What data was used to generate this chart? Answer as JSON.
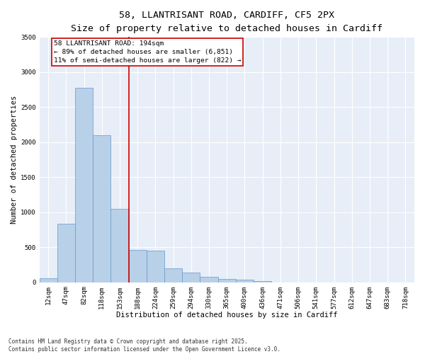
{
  "title_line1": "58, LLANTRISANT ROAD, CARDIFF, CF5 2PX",
  "title_line2": "Size of property relative to detached houses in Cardiff",
  "xlabel": "Distribution of detached houses by size in Cardiff",
  "ylabel": "Number of detached properties",
  "bar_color": "#b8d0e8",
  "bar_edge_color": "#6699cc",
  "background_color": "#e8eef8",
  "grid_color": "#ffffff",
  "categories": [
    "12sqm",
    "47sqm",
    "82sqm",
    "118sqm",
    "153sqm",
    "188sqm",
    "224sqm",
    "259sqm",
    "294sqm",
    "330sqm",
    "365sqm",
    "400sqm",
    "436sqm",
    "471sqm",
    "506sqm",
    "541sqm",
    "577sqm",
    "612sqm",
    "647sqm",
    "683sqm",
    "718sqm"
  ],
  "values": [
    55,
    840,
    2780,
    2100,
    1050,
    460,
    450,
    200,
    140,
    75,
    50,
    35,
    20,
    0,
    0,
    0,
    0,
    0,
    0,
    0,
    0
  ],
  "vline_color": "#cc0000",
  "vline_x_index": 5,
  "annotation_text": "58 LLANTRISANT ROAD: 194sqm\n← 89% of detached houses are smaller (6,851)\n11% of semi-detached houses are larger (822) →",
  "annotation_box_color": "#cc0000",
  "ylim": [
    0,
    3500
  ],
  "yticks": [
    0,
    500,
    1000,
    1500,
    2000,
    2500,
    3000,
    3500
  ],
  "footnote": "Contains HM Land Registry data © Crown copyright and database right 2025.\nContains public sector information licensed under the Open Government Licence v3.0.",
  "title_fontsize": 9.5,
  "subtitle_fontsize": 8.5,
  "tick_fontsize": 6.5,
  "ylabel_fontsize": 7.5,
  "xlabel_fontsize": 7.5,
  "annotation_fontsize": 6.8,
  "footnote_fontsize": 5.5
}
